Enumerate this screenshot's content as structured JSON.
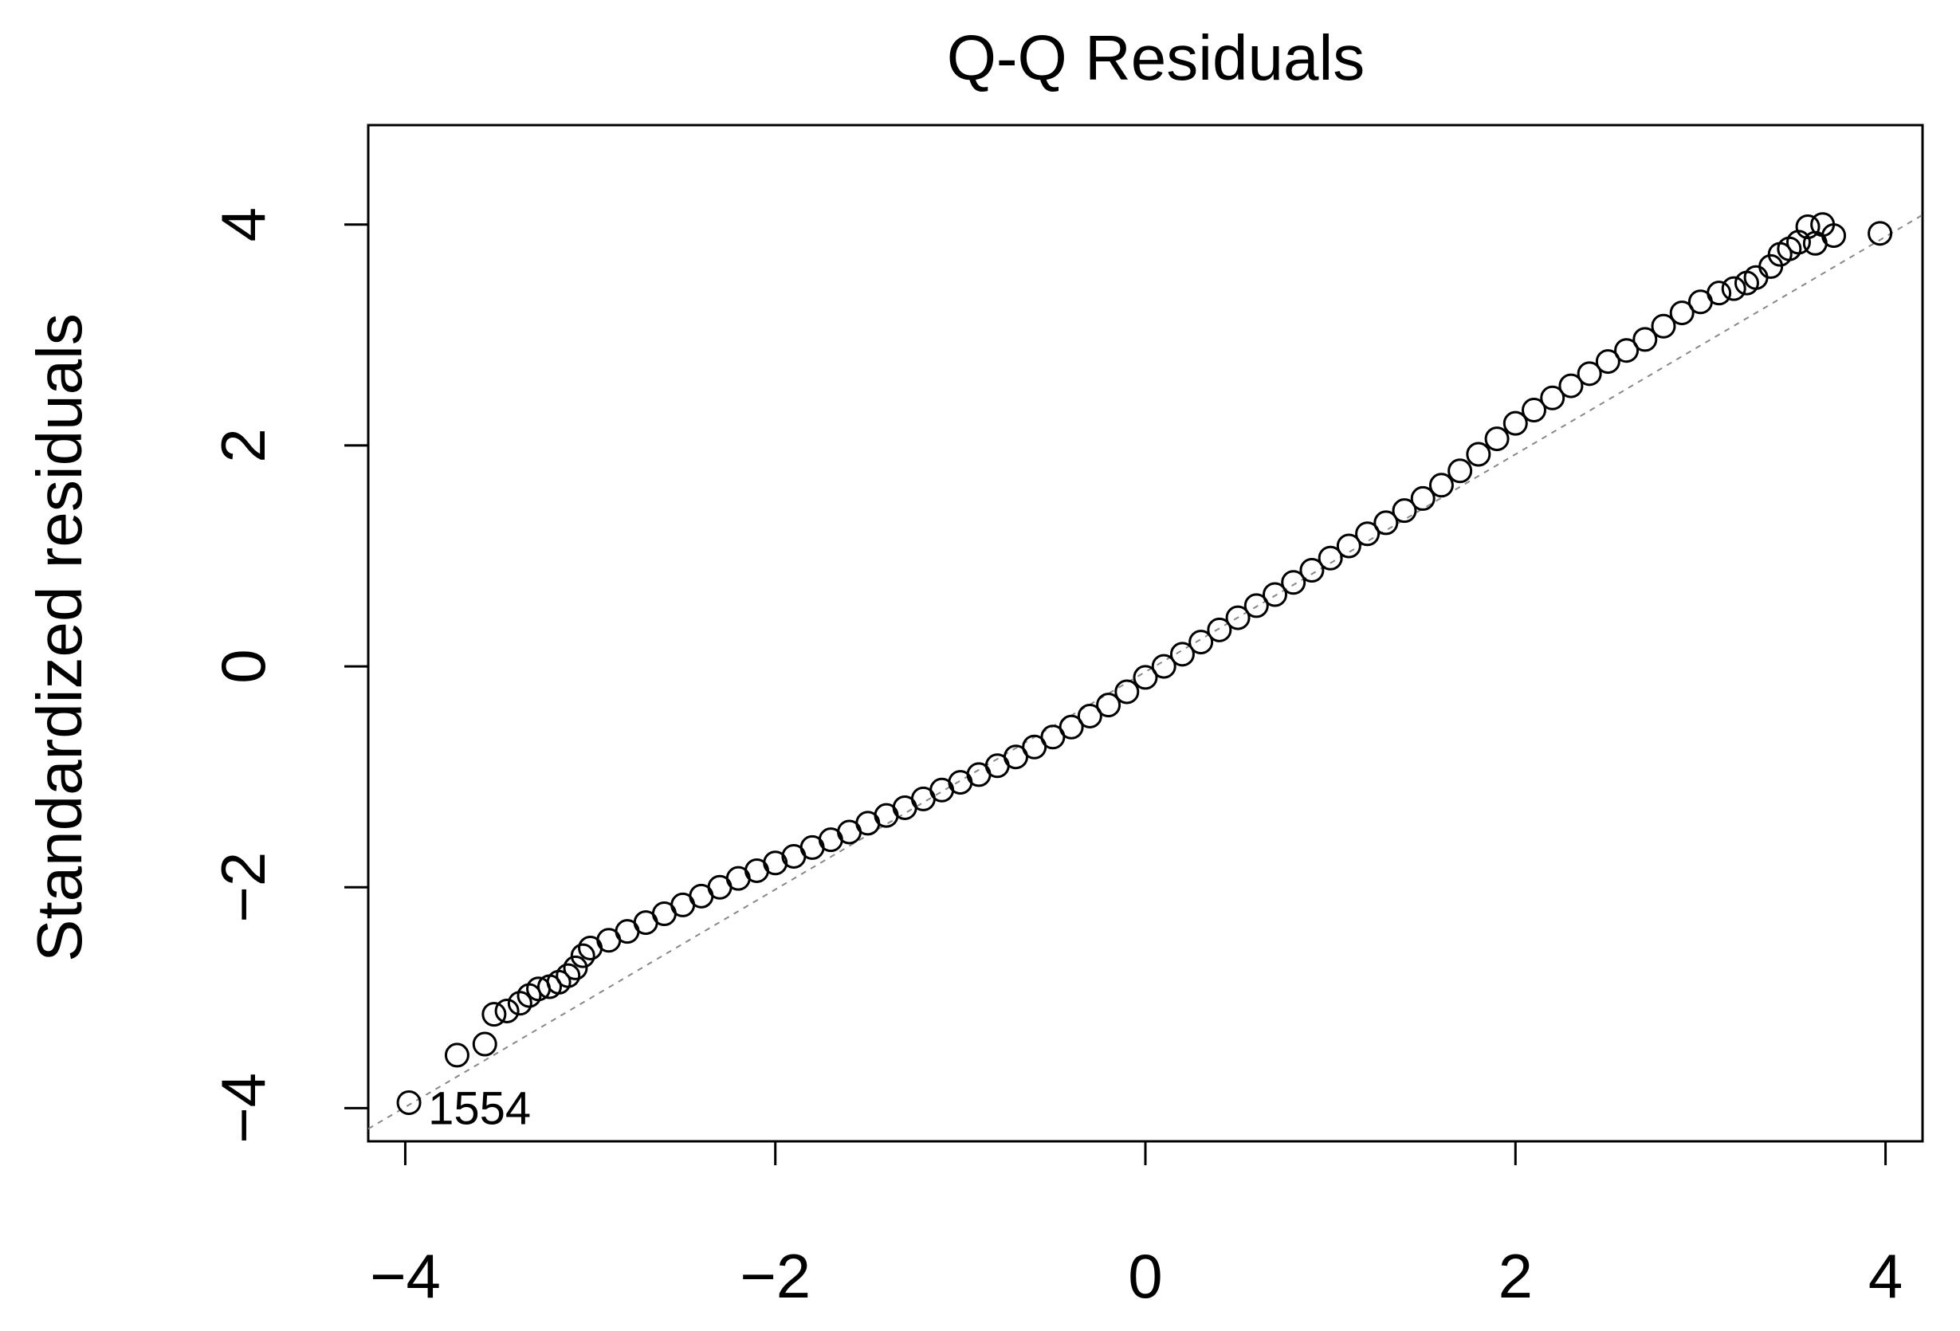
{
  "chart_data": {
    "type": "scatter",
    "title": "Q-Q Residuals",
    "xlabel": "",
    "ylabel": "Standardized residuals",
    "xlim": [
      -4.2,
      4.2
    ],
    "ylim": [
      -4.3,
      4.9
    ],
    "x_ticks": [
      -4,
      -2,
      0,
      2,
      4
    ],
    "y_ticks": [
      -4,
      -2,
      0,
      2,
      4
    ],
    "x_tick_labels": [
      "−4",
      "−2",
      "0",
      "2",
      "4"
    ],
    "y_tick_labels": [
      "−4",
      "−2",
      "0",
      "2",
      "4"
    ],
    "grid": false,
    "reference_line": {
      "slope": 0.985,
      "intercept": -0.05,
      "style": "dashed",
      "color": "#888888"
    },
    "point_color": "#000000",
    "annotations": [
      {
        "text": "1554",
        "x": -3.98,
        "y": -4.0
      }
    ],
    "series": [
      {
        "points": [
          [
            -3.98,
            -3.95
          ],
          [
            -3.72,
            -3.52
          ],
          [
            -3.57,
            -3.42
          ],
          [
            -3.52,
            -3.15
          ],
          [
            -3.45,
            -3.12
          ],
          [
            -3.38,
            -3.05
          ],
          [
            -3.33,
            -2.98
          ],
          [
            -3.28,
            -2.92
          ],
          [
            -3.22,
            -2.9
          ],
          [
            -3.17,
            -2.86
          ],
          [
            -3.12,
            -2.8
          ],
          [
            -3.08,
            -2.73
          ],
          [
            -3.04,
            -2.62
          ],
          [
            -3.0,
            -2.55
          ],
          [
            -2.9,
            -2.48
          ],
          [
            -2.8,
            -2.4
          ],
          [
            -2.7,
            -2.32
          ],
          [
            -2.6,
            -2.24
          ],
          [
            -2.5,
            -2.16
          ],
          [
            -2.4,
            -2.08
          ],
          [
            -2.3,
            -2.0
          ],
          [
            -2.2,
            -1.92
          ],
          [
            -2.1,
            -1.85
          ],
          [
            -2.0,
            -1.78
          ],
          [
            -1.9,
            -1.72
          ],
          [
            -1.8,
            -1.64
          ],
          [
            -1.7,
            -1.57
          ],
          [
            -1.6,
            -1.5
          ],
          [
            -1.5,
            -1.42
          ],
          [
            -1.4,
            -1.35
          ],
          [
            -1.3,
            -1.28
          ],
          [
            -1.2,
            -1.2
          ],
          [
            -1.1,
            -1.12
          ],
          [
            -1.0,
            -1.05
          ],
          [
            -0.9,
            -0.98
          ],
          [
            -0.8,
            -0.9
          ],
          [
            -0.7,
            -0.82
          ],
          [
            -0.6,
            -0.73
          ],
          [
            -0.5,
            -0.64
          ],
          [
            -0.4,
            -0.55
          ],
          [
            -0.3,
            -0.45
          ],
          [
            -0.2,
            -0.35
          ],
          [
            -0.1,
            -0.23
          ],
          [
            0.0,
            -0.1
          ],
          [
            0.1,
            0.0
          ],
          [
            0.2,
            0.11
          ],
          [
            0.3,
            0.22
          ],
          [
            0.4,
            0.33
          ],
          [
            0.5,
            0.44
          ],
          [
            0.6,
            0.55
          ],
          [
            0.7,
            0.65
          ],
          [
            0.8,
            0.76
          ],
          [
            0.9,
            0.87
          ],
          [
            1.0,
            0.98
          ],
          [
            1.1,
            1.09
          ],
          [
            1.2,
            1.2
          ],
          [
            1.3,
            1.3
          ],
          [
            1.4,
            1.41
          ],
          [
            1.5,
            1.52
          ],
          [
            1.6,
            1.64
          ],
          [
            1.7,
            1.77
          ],
          [
            1.8,
            1.92
          ],
          [
            1.9,
            2.06
          ],
          [
            2.0,
            2.2
          ],
          [
            2.1,
            2.32
          ],
          [
            2.2,
            2.43
          ],
          [
            2.3,
            2.54
          ],
          [
            2.4,
            2.65
          ],
          [
            2.5,
            2.76
          ],
          [
            2.6,
            2.86
          ],
          [
            2.7,
            2.96
          ],
          [
            2.8,
            3.08
          ],
          [
            2.9,
            3.2
          ],
          [
            3.0,
            3.3
          ],
          [
            3.1,
            3.38
          ],
          [
            3.18,
            3.42
          ],
          [
            3.25,
            3.47
          ],
          [
            3.3,
            3.52
          ],
          [
            3.38,
            3.62
          ],
          [
            3.43,
            3.73
          ],
          [
            3.48,
            3.78
          ],
          [
            3.53,
            3.84
          ],
          [
            3.58,
            3.98
          ],
          [
            3.62,
            3.83
          ],
          [
            3.66,
            4.0
          ],
          [
            3.72,
            3.9
          ],
          [
            3.97,
            3.92
          ]
        ]
      }
    ]
  }
}
